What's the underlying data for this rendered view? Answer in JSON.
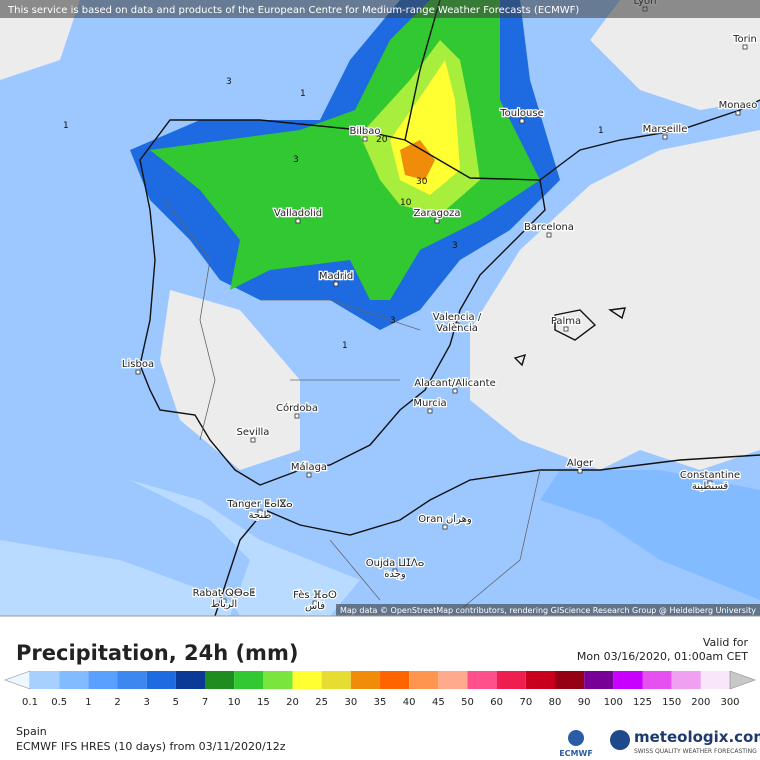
{
  "header": {
    "notice": "This service is based on data and products of the European Centre for Medium-range Weather Forecasts (ECMWF)"
  },
  "map": {
    "cities": [
      {
        "name": "Lyon"
      },
      {
        "name": "Torin"
      },
      {
        "name": "Monaco"
      },
      {
        "name": "Marseille"
      },
      {
        "name": "Toulouse"
      },
      {
        "name": "Bilbao"
      },
      {
        "name": "Valladolid"
      },
      {
        "name": "Zaragoza"
      },
      {
        "name": "Barcelona"
      },
      {
        "name": "Madrid"
      },
      {
        "name": "Valencia /",
        "sub": "València"
      },
      {
        "name": "Palma"
      },
      {
        "name": "Lisboa"
      },
      {
        "name": "Alacant/Alicante"
      },
      {
        "name": "Murcia"
      },
      {
        "name": "Córdoba"
      },
      {
        "name": "Sevilla"
      },
      {
        "name": "Málaga"
      },
      {
        "name": "Alger"
      },
      {
        "name": "Constantine",
        "sub": "قسنطينة"
      },
      {
        "name": "Tanger ⵟⴰⵏⴵⴰ",
        "sub": "طنجة"
      },
      {
        "name": "Oran وهران"
      },
      {
        "name": "Oujda ⵡⵊⴷⴰ",
        "sub": "وجدة"
      },
      {
        "name": "Rabat ⵕⴱⴰⵟ",
        "sub": "الرباط"
      },
      {
        "name": "Fès ⴼⴰⵙ",
        "sub": "فاس"
      }
    ],
    "contour_labels": [
      "1",
      "3",
      "1",
      "3",
      "20",
      "30",
      "10",
      "3",
      "1",
      "3",
      "1"
    ],
    "attribution": "Map data © OpenStreetMap contributors, rendering GIScience Research Group @ Heidelberg University"
  },
  "legend": {
    "title": "Precipitation, 24h (mm)",
    "valid_label": "Valid for",
    "valid_time": "Mon 03/16/2020, 01:00am CET",
    "levels": [
      {
        "value": 0.1,
        "color": "#a8d0ff"
      },
      {
        "value": 0.5,
        "color": "#82bbff"
      },
      {
        "value": 1,
        "color": "#5aa0ff"
      },
      {
        "value": 2,
        "color": "#3c88f0"
      },
      {
        "value": 3,
        "color": "#1e6ae0"
      },
      {
        "value": 5,
        "color": "#0a3a96"
      },
      {
        "value": 7,
        "color": "#1e8c1e"
      },
      {
        "value": 10,
        "color": "#32c832"
      },
      {
        "value": 15,
        "color": "#78e63c"
      },
      {
        "value": 20,
        "color": "#ffff32"
      },
      {
        "value": 25,
        "color": "#e6dc32"
      },
      {
        "value": 30,
        "color": "#f08c0a"
      },
      {
        "value": 35,
        "color": "#ff6400"
      },
      {
        "value": 40,
        "color": "#ff9650"
      },
      {
        "value": 45,
        "color": "#ffaa8c"
      },
      {
        "value": 50,
        "color": "#ff508c"
      },
      {
        "value": 60,
        "color": "#f01e50"
      },
      {
        "value": 70,
        "color": "#c8001e"
      },
      {
        "value": 80,
        "color": "#960014"
      },
      {
        "value": 90,
        "color": "#780096"
      },
      {
        "value": 100,
        "color": "#c800ff"
      },
      {
        "value": 125,
        "color": "#e650f0"
      },
      {
        "value": 150,
        "color": "#f0a0f0"
      },
      {
        "value": 200,
        "color": "#fae6fa"
      },
      {
        "value": 300,
        "color": "#c8c8c8"
      }
    ]
  },
  "footer": {
    "region": "Spain",
    "model": "ECMWF IFS HRES (10 days) from 03/11/2020/12z",
    "ecmwf": "ECMWF",
    "brand": "meteologix.com",
    "tagline": "SWISS QUALITY WEATHER FORECASTING"
  }
}
